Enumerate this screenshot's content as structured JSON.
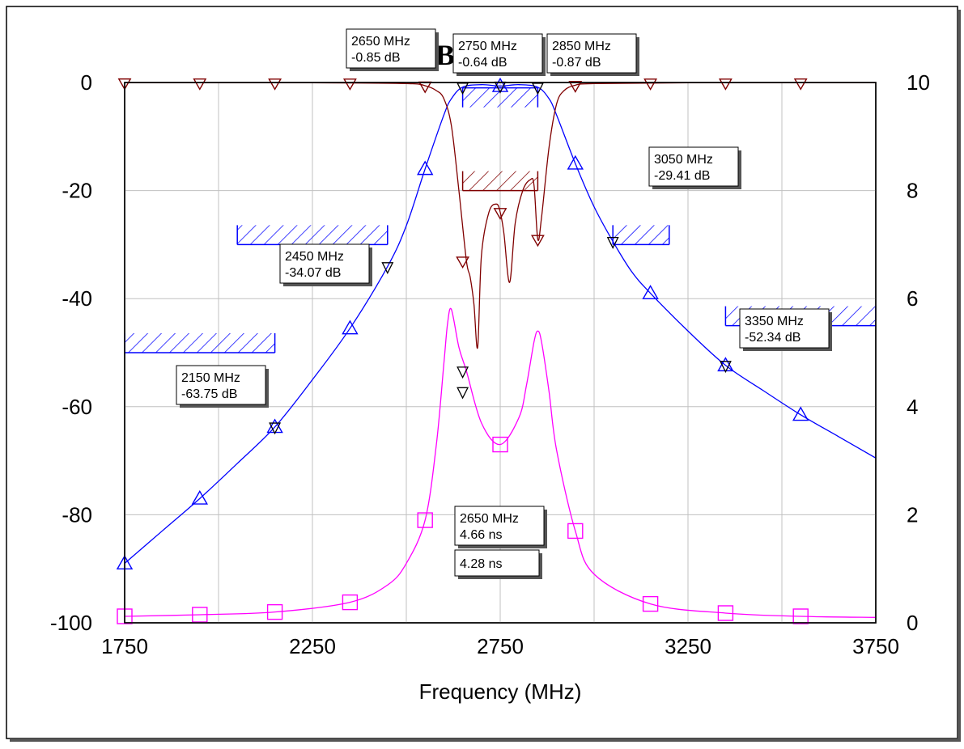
{
  "chart_data": {
    "type": "line",
    "title": "",
    "xlabel": "Frequency (MHz)",
    "ylabel_left": "",
    "ylabel_right": "",
    "xlim": [
      1750,
      3750
    ],
    "ylim_left": [
      -100,
      0
    ],
    "ylim_right": [
      0,
      10
    ],
    "x_ticks": [
      "1750",
      "2250",
      "2750",
      "3250",
      "3750"
    ],
    "y_left_ticks": [
      "0",
      "-20",
      "-40",
      "-60",
      "-80",
      "-100"
    ],
    "y_right_ticks": [
      "10",
      "8",
      "6",
      "4",
      "2",
      "0"
    ],
    "grid": true,
    "colors": {
      "s21": "#0000ff",
      "s11": "#800000",
      "group_delay": "#ff00ff",
      "spec": "#0000ff",
      "spec_s11": "#800000",
      "marker": "#000000"
    },
    "series": [
      {
        "key": "s21",
        "axis": "left",
        "marker": "triangle-up",
        "x": [
          1750,
          1850,
          1950,
          2050,
          2150,
          2250,
          2350,
          2450,
          2500,
          2550,
          2600,
          2620,
          2650,
          2700,
          2750,
          2800,
          2850,
          2880,
          2900,
          2950,
          3000,
          3050,
          3100,
          3150,
          3250,
          3350,
          3450,
          3550,
          3650,
          3750
        ],
        "y": [
          -89,
          -83,
          -77,
          -70.5,
          -63.75,
          -55,
          -45.5,
          -34.07,
          -26.5,
          -16,
          -6,
          -3,
          -0.85,
          -0.4,
          -0.64,
          -0.4,
          -0.87,
          -3,
          -6,
          -15,
          -23,
          -29.41,
          -35,
          -39,
          -46,
          -52.34,
          -57,
          -61.5,
          -65.5,
          -69.5
        ],
        "marker_x": [
          1750,
          1950,
          2150,
          2350,
          2550,
          2750,
          2950,
          3150,
          3350,
          3550
        ],
        "marker_y": [
          -89,
          -77,
          -63.75,
          -45.5,
          -16,
          -0.64,
          -15,
          -39,
          -52.34,
          -61.5
        ]
      },
      {
        "key": "s11",
        "axis": "left",
        "marker": "triangle-down",
        "x": [
          1750,
          2250,
          2500,
          2550,
          2580,
          2600,
          2620,
          2640,
          2660,
          2670,
          2680,
          2690,
          2700,
          2720,
          2740,
          2750,
          2760,
          2775,
          2790,
          2810,
          2830,
          2840,
          2850,
          2860,
          2880,
          2900,
          2920,
          2950,
          3000,
          3250,
          3750
        ],
        "y": [
          -0.02,
          -0.05,
          -0.2,
          -0.6,
          -1.5,
          -3,
          -8,
          -20,
          -33,
          -36,
          -41,
          -49,
          -32,
          -24,
          -22.5,
          -24,
          -28,
          -37,
          -26,
          -20,
          -18,
          -19,
          -29,
          -25,
          -12,
          -4,
          -1.5,
          -0.5,
          -0.2,
          -0.05,
          -0.02
        ],
        "marker_x": [
          1750,
          1950,
          2150,
          2350,
          2550,
          2650,
          2750,
          2850,
          2950,
          3150,
          3350,
          3550
        ],
        "marker_y": [
          -0.02,
          -0.03,
          -0.04,
          -0.05,
          -0.6,
          -33,
          -24,
          -29,
          -0.5,
          -0.05,
          -0.04,
          -0.03
        ]
      },
      {
        "key": "group_delay",
        "axis": "right",
        "marker": "square",
        "x": [
          1750,
          1950,
          2150,
          2350,
          2450,
          2500,
          2550,
          2580,
          2600,
          2610,
          2620,
          2640,
          2660,
          2700,
          2750,
          2800,
          2820,
          2840,
          2850,
          2860,
          2880,
          2900,
          2950,
          3000,
          3150,
          3350,
          3550,
          3750
        ],
        "y": [
          0.12,
          0.15,
          0.2,
          0.38,
          0.7,
          1.1,
          1.9,
          3.3,
          4.8,
          5.55,
          5.8,
          5.1,
          4.66,
          3.7,
          3.3,
          3.8,
          4.4,
          5.2,
          5.4,
          5.2,
          4.28,
          3.2,
          1.7,
          0.9,
          0.35,
          0.18,
          0.12,
          0.1
        ],
        "marker_x": [
          1750,
          1950,
          2150,
          2350,
          2550,
          2750,
          2950,
          3150,
          3350,
          3550
        ],
        "marker_y": [
          0.12,
          0.15,
          0.2,
          0.38,
          1.9,
          3.3,
          1.7,
          0.35,
          0.18,
          0.12
        ]
      }
    ],
    "spec_masks": [
      {
        "key": "s21-low-1",
        "x1": 1750,
        "x2": 2150,
        "y": -50,
        "side": "above",
        "color_key": "spec"
      },
      {
        "key": "s21-low-2",
        "x1": 2050,
        "x2": 2450,
        "y": -30,
        "side": "above",
        "color_key": "spec"
      },
      {
        "key": "s21-pass",
        "x1": 2650,
        "x2": 2850,
        "y": -1,
        "side": "below",
        "color_key": "spec"
      },
      {
        "key": "s21-high-1",
        "x1": 3050,
        "x2": 3200,
        "y": -30,
        "side": "above",
        "color_key": "spec"
      },
      {
        "key": "s21-high-2",
        "x1": 3350,
        "x2": 3750,
        "y": -45,
        "side": "above",
        "color_key": "spec"
      },
      {
        "key": "s11-pass",
        "x1": 2650,
        "x2": 2850,
        "y": -20,
        "side": "above",
        "color_key": "spec_s11"
      }
    ],
    "annotations": [
      {
        "key": "m-2650",
        "line1": "2650 MHz",
        "line2": "-0.85 dB",
        "x": 2650,
        "y": -0.85,
        "axis": "left"
      },
      {
        "key": "m-2750",
        "line1": "2750 MHz",
        "line2": "-0.64 dB",
        "x": 2750,
        "y": -0.64,
        "axis": "left"
      },
      {
        "key": "m-2850",
        "line1": "2850 MHz",
        "line2": "-0.87 dB",
        "x": 2850,
        "y": -0.87,
        "axis": "left"
      },
      {
        "key": "m-3050",
        "line1": "3050 MHz",
        "line2": "-29.41 dB",
        "x": 3050,
        "y": -29.41,
        "axis": "left"
      },
      {
        "key": "m-2450",
        "line1": "2450 MHz",
        "line2": "-34.07 dB",
        "x": 2450,
        "y": -34.07,
        "axis": "left"
      },
      {
        "key": "m-3350",
        "line1": "3350 MHz",
        "line2": "-52.34 dB",
        "x": 3350,
        "y": -52.34,
        "axis": "left"
      },
      {
        "key": "m-2150",
        "line1": "2150 MHz",
        "line2": "-63.75 dB",
        "x": 2150,
        "y": -63.75,
        "axis": "left"
      },
      {
        "key": "m-gd-2650",
        "line1": "2650 MHz",
        "line2": "4.66 ns",
        "x": 2650,
        "y": 4.66,
        "axis": "right"
      },
      {
        "key": "m-gd-2",
        "line1": "4.28 ns",
        "line2": "",
        "x": 2650,
        "y": 4.28,
        "axis": "right"
      }
    ],
    "partial_title_glyph": "B"
  }
}
